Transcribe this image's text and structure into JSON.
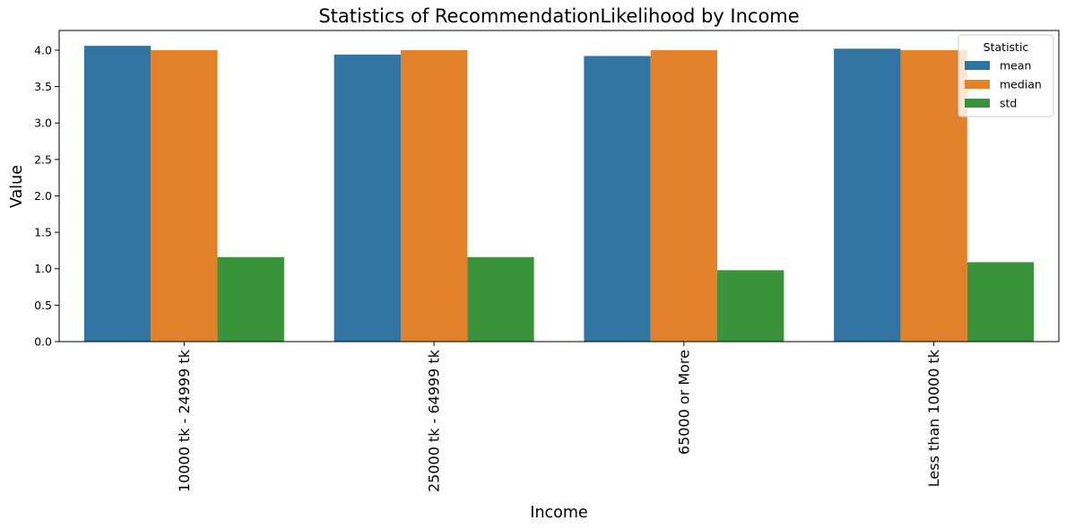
{
  "chart_data": {
    "type": "bar",
    "title": "Statistics of RecommendationLikelihood by Income",
    "xlabel": "Income",
    "ylabel": "Value",
    "categories": [
      "10000 tk - 24999 tk",
      "25000 tk - 64999 tk",
      "65000 or More",
      "Less than 10000 tk"
    ],
    "series": [
      {
        "name": "mean",
        "color": "#3274a1",
        "values": [
          4.06,
          3.94,
          3.92,
          4.02
        ]
      },
      {
        "name": "median",
        "color": "#e1812c",
        "values": [
          4.0,
          4.0,
          4.0,
          4.0
        ]
      },
      {
        "name": "std",
        "color": "#3a923a",
        "values": [
          1.16,
          1.16,
          0.98,
          1.09
        ]
      }
    ],
    "ylim": [
      0,
      4.27
    ],
    "yticks": [
      "0.0",
      "0.5",
      "1.0",
      "1.5",
      "2.0",
      "2.5",
      "3.0",
      "3.5",
      "4.0"
    ],
    "grid": false,
    "legend": {
      "title": "Statistic",
      "position": "upper right"
    }
  }
}
